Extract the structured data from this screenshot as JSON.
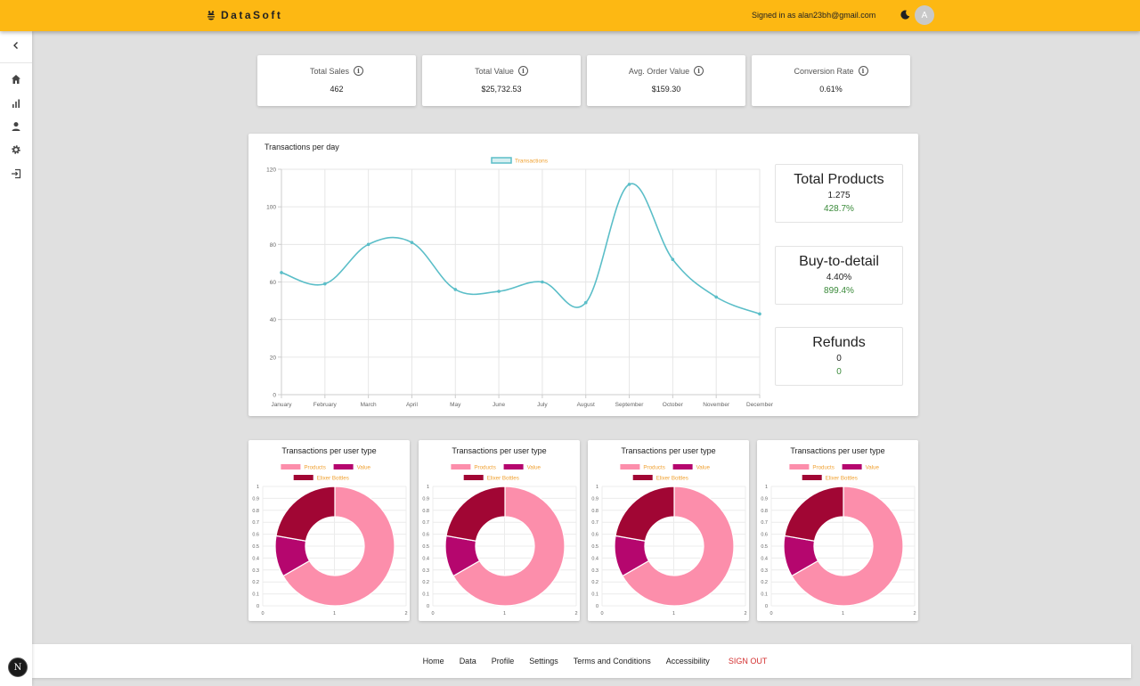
{
  "header": {
    "brand": "DataSoft",
    "signed_in": "Signed in as alan23bh@gmail.com",
    "avatar_initial": "A",
    "brand_color": "#fdb813"
  },
  "sidebar": {
    "items": [
      {
        "icon": "home-icon"
      },
      {
        "icon": "bar-chart-icon"
      },
      {
        "icon": "person-icon"
      },
      {
        "icon": "gear-icon"
      },
      {
        "icon": "sign-out-icon"
      }
    ]
  },
  "kpis": [
    {
      "label": "Total Sales",
      "value": "462"
    },
    {
      "label": "Total Value",
      "value": "$25,732.53"
    },
    {
      "label": "Avg. Order Value",
      "value": "$159.30"
    },
    {
      "label": "Conversion Rate",
      "value": "0.61%"
    }
  ],
  "line_card": {
    "title": "Transactions per day"
  },
  "stats": [
    {
      "title": "Total Products",
      "value": "1.275",
      "change": "428.7%"
    },
    {
      "title": "Buy-to-detail",
      "value": "4.40%",
      "change": "899.4%"
    },
    {
      "title": "Refunds",
      "value": "0",
      "change": "0"
    }
  ],
  "chart_data": [
    {
      "type": "line",
      "title": "Transactions per day",
      "categories": [
        "January",
        "February",
        "March",
        "April",
        "May",
        "June",
        "July",
        "August",
        "September",
        "October",
        "November",
        "December"
      ],
      "series": [
        {
          "name": "Transactions",
          "values": [
            65,
            59,
            80,
            81,
            56,
            55,
            60,
            49,
            112,
            72,
            52,
            43
          ],
          "color": "#5bbec8"
        }
      ],
      "ylim": [
        0,
        120
      ],
      "yticks": [
        "0",
        "20",
        "40",
        "60",
        "80",
        "100",
        "120"
      ],
      "grid": true,
      "legend": "top-center"
    },
    {
      "type": "pie",
      "title": "Transactions per user type",
      "labels": [
        "Products",
        "Value",
        "Elixer Bottles"
      ],
      "values": [
        300,
        50,
        100
      ],
      "colors": [
        "#fc8eab",
        "#b5066e",
        "#a10634"
      ],
      "yticks": [
        "0",
        "0.1",
        "0.2",
        "0.3",
        "0.4",
        "0.5",
        "0.6",
        "0.7",
        "0.8",
        "0.9",
        "1"
      ],
      "xticks": [
        "0",
        "1",
        "2"
      ]
    },
    {
      "type": "pie",
      "title": "Transactions per user type",
      "labels": [
        "Products",
        "Value",
        "Elixer Bottles"
      ],
      "values": [
        300,
        50,
        100
      ],
      "colors": [
        "#fc8eab",
        "#b5066e",
        "#a10634"
      ],
      "yticks": [
        "0",
        "0.1",
        "0.2",
        "0.3",
        "0.4",
        "0.5",
        "0.6",
        "0.7",
        "0.8",
        "0.9",
        "1"
      ],
      "xticks": [
        "0",
        "1",
        "2"
      ]
    },
    {
      "type": "pie",
      "title": "Transactions per user type",
      "labels": [
        "Products",
        "Value",
        "Elixer Bottles"
      ],
      "values": [
        300,
        50,
        100
      ],
      "colors": [
        "#fc8eab",
        "#b5066e",
        "#a10634"
      ],
      "yticks": [
        "0",
        "0.1",
        "0.2",
        "0.3",
        "0.4",
        "0.5",
        "0.6",
        "0.7",
        "0.8",
        "0.9",
        "1"
      ],
      "xticks": [
        "0",
        "1",
        "2"
      ]
    },
    {
      "type": "pie",
      "title": "Transactions per user type",
      "labels": [
        "Products",
        "Value",
        "Elixer Bottles"
      ],
      "values": [
        300,
        50,
        100
      ],
      "colors": [
        "#fc8eab",
        "#b5066e",
        "#a10634"
      ],
      "yticks": [
        "0",
        "0.1",
        "0.2",
        "0.3",
        "0.4",
        "0.5",
        "0.6",
        "0.7",
        "0.8",
        "0.9",
        "1"
      ],
      "xticks": [
        "0",
        "1",
        "2"
      ]
    }
  ],
  "footer": {
    "links": [
      "Home",
      "Data",
      "Profile",
      "Settings",
      "Terms and Conditions",
      "Accessibility"
    ],
    "signout": "SIGN OUT"
  }
}
